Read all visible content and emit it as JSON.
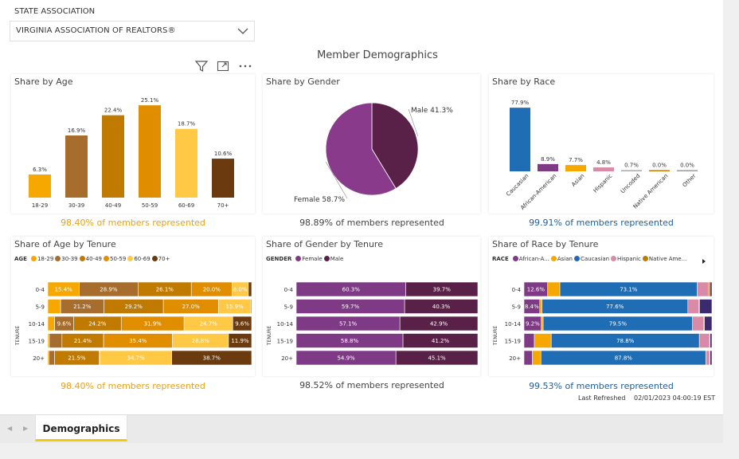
{
  "slicer": {
    "label": "STATE ASSOCIATION",
    "value": "VIRGINIA ASSOCIATION OF REALTORS®"
  },
  "page_title": "Member Demographics",
  "icons": [
    "filter-icon",
    "focus-mode-icon",
    "more-options-icon",
    "chevron-down-icon",
    "nav-left-icon",
    "nav-right-icon",
    "legend-next-icon"
  ],
  "panels": {
    "age": {
      "title": "Share by Age",
      "represented": "98.40% of members represented"
    },
    "gender": {
      "title": "Share by Gender",
      "represented": "98.89% of members represented"
    },
    "race": {
      "title": "Share by Race",
      "represented": "99.91% of members represented"
    },
    "age_tenure": {
      "title": "Share of Age by Tenure",
      "represented": "98.40% of members represented",
      "legend_title": "AGE",
      "legend": [
        {
          "label": "18-29",
          "color": "#f6a800"
        },
        {
          "label": "30-39",
          "color": "#a66d2d"
        },
        {
          "label": "40-49",
          "color": "#c07a00"
        },
        {
          "label": "50-59",
          "color": "#e08e00"
        },
        {
          "label": "60-69",
          "color": "#ffc845"
        },
        {
          "label": "70+",
          "color": "#6b3a0e"
        }
      ]
    },
    "gender_tenure": {
      "title": "Share of Gender by Tenure",
      "represented": "98.52% of members represented",
      "legend_title": "GENDER",
      "legend": [
        {
          "label": "Female",
          "color": "#7e3a85"
        },
        {
          "label": "Male",
          "color": "#5a2148"
        }
      ]
    },
    "race_tenure": {
      "title": "Share of Race by Tenure",
      "represented": "99.53% of members represented",
      "legend_title": "RACE",
      "legend": [
        {
          "label": "African-A...",
          "color": "#7e3a85"
        },
        {
          "label": "Asian",
          "color": "#f6a800"
        },
        {
          "label": "Caucasian",
          "color": "#1f6db5"
        },
        {
          "label": "Hispanic",
          "color": "#d98aa6"
        },
        {
          "label": "Native Ame...",
          "color": "#c07a00"
        }
      ]
    }
  },
  "refreshed": {
    "label": "Last Refreshed",
    "value": "02/01/2023 04:00:19 EST"
  },
  "tabs": {
    "active": "Demographics"
  },
  "colors": {
    "orange_text": "#e6a117",
    "blue_text": "#1f5f99",
    "dark_text": "#444444"
  },
  "chart_data": [
    {
      "type": "bar",
      "title": "Share by Age",
      "categories": [
        "18-29",
        "30-39",
        "40-49",
        "50-59",
        "60-69",
        "70+"
      ],
      "values": [
        6.3,
        16.9,
        22.4,
        25.1,
        18.7,
        10.6
      ],
      "labels": [
        "6.3%",
        "16.9%",
        "22.4%",
        "25.1%",
        "18.7%",
        "10.6%"
      ],
      "colors": [
        "#f6a800",
        "#a66d2d",
        "#c07a00",
        "#e08e00",
        "#ffc845",
        "#6b3a0e"
      ],
      "ylim": [
        0,
        26
      ]
    },
    {
      "type": "pie",
      "title": "Share by Gender",
      "categories": [
        "Male",
        "Female"
      ],
      "values": [
        41.3,
        58.7
      ],
      "labels": [
        "Male 41.3%",
        "Female 58.7%"
      ],
      "colors": [
        "#5a2148",
        "#8a3a8a"
      ]
    },
    {
      "type": "bar",
      "title": "Share by Race",
      "categories": [
        "Caucasian",
        "African-American",
        "Asian",
        "Hispanic",
        "Uncoded",
        "Native American",
        "Other"
      ],
      "values": [
        77.9,
        8.9,
        7.7,
        4.8,
        0.7,
        0.0,
        0.0
      ],
      "labels": [
        "77.9%",
        "8.9%",
        "7.7%",
        "4.8%",
        "0.7%",
        "0.0%",
        "0.0%"
      ],
      "colors": [
        "#1f6db5",
        "#7e3a85",
        "#f6a800",
        "#d98aa6",
        "#aaaaaa",
        "#c07a00",
        "#999999"
      ],
      "ylim": [
        0,
        80
      ]
    },
    {
      "type": "bar",
      "stacked": "100%",
      "orientation": "horizontal",
      "title": "Share of Age by Tenure",
      "ylabel": "TENURE",
      "categories": [
        "0-4",
        "5-9",
        "10-14",
        "15-19",
        "20+"
      ],
      "series": [
        {
          "name": "18-29",
          "values": [
            15.4,
            6.3,
            3.5,
            0.8,
            0.5
          ],
          "labels": [
            "15.4%",
            "",
            "",
            "",
            ""
          ]
        },
        {
          "name": "30-39",
          "values": [
            28.9,
            21.2,
            9.6,
            6.5,
            2.8
          ],
          "labels": [
            "28.9%",
            "21.2%",
            "9.6%",
            "",
            ""
          ]
        },
        {
          "name": "40-49",
          "values": [
            26.1,
            29.2,
            24.2,
            21.4,
            21.5
          ],
          "labels": [
            "26.1%",
            "29.2%",
            "24.2%",
            "21.4%",
            "21.5%"
          ]
        },
        {
          "name": "50-59",
          "values": [
            20.0,
            27.0,
            31.9,
            35.4,
            0.5
          ],
          "labels": [
            "20.0%",
            "27.0%",
            "31.9%",
            "35.4%",
            ""
          ]
        },
        {
          "name": "60-69",
          "values": [
            8.0,
            15.9,
            24.7,
            28.8,
            34.7
          ],
          "labels": [
            "8.0%",
            "15.9%",
            "24.7%",
            "28.8%",
            "34.7%"
          ]
        },
        {
          "name": "70+",
          "values": [
            1.6,
            0.4,
            9.6,
            11.9,
            38.7
          ],
          "labels": [
            "",
            "",
            "9.6%",
            "11.9%",
            "38.7%"
          ]
        }
      ]
    },
    {
      "type": "bar",
      "stacked": "100%",
      "orientation": "horizontal",
      "title": "Share of Gender by Tenure",
      "ylabel": "TENURE",
      "categories": [
        "0-4",
        "5-9",
        "10-14",
        "15-19",
        "20+"
      ],
      "series": [
        {
          "name": "Female",
          "values": [
            60.3,
            59.7,
            57.1,
            58.8,
            54.9
          ],
          "labels": [
            "60.3%",
            "59.7%",
            "57.1%",
            "58.8%",
            "54.9%"
          ]
        },
        {
          "name": "Male",
          "values": [
            39.7,
            40.3,
            42.9,
            41.2,
            45.1
          ],
          "labels": [
            "39.7%",
            "40.3%",
            "42.9%",
            "41.2%",
            "45.1%"
          ]
        }
      ]
    },
    {
      "type": "bar",
      "stacked": "100%",
      "orientation": "horizontal",
      "title": "Share of Race by Tenure",
      "ylabel": "TENURE",
      "categories": [
        "0-4",
        "5-9",
        "10-14",
        "15-19",
        "20+"
      ],
      "series": [
        {
          "name": "African-American",
          "values": [
            12.6,
            8.4,
            9.2,
            5.5,
            4.5
          ],
          "labels": [
            "12.6%",
            "8.4%",
            "9.2%",
            "",
            ""
          ]
        },
        {
          "name": "Asian",
          "values": [
            6.5,
            1.2,
            1.0,
            9.0,
            4.5
          ],
          "labels": [
            "",
            "",
            "",
            "",
            ""
          ]
        },
        {
          "name": "Caucasian",
          "values": [
            73.1,
            77.6,
            79.5,
            78.8,
            87.8
          ],
          "labels": [
            "73.1%",
            "77.6%",
            "79.5%",
            "78.8%",
            "87.8%"
          ]
        },
        {
          "name": "Hispanic",
          "values": [
            6.0,
            5.8,
            6.0,
            5.5,
            2.0
          ],
          "labels": [
            "",
            "",
            "",
            "",
            ""
          ]
        },
        {
          "name": "Native American",
          "values": [
            0.8,
            0.4,
            0.3,
            0.2,
            0.2
          ],
          "labels": [
            "",
            "",
            "",
            "",
            ""
          ]
        },
        {
          "name": "Other",
          "values": [
            1.0,
            6.6,
            4.0,
            1.0,
            1.0
          ],
          "labels": [
            "",
            "",
            "",
            "",
            ""
          ]
        }
      ],
      "colors": [
        "#7e3a85",
        "#f6a800",
        "#1f6db5",
        "#d98aa6",
        "#c07a00",
        "#3b2a6e"
      ]
    }
  ]
}
